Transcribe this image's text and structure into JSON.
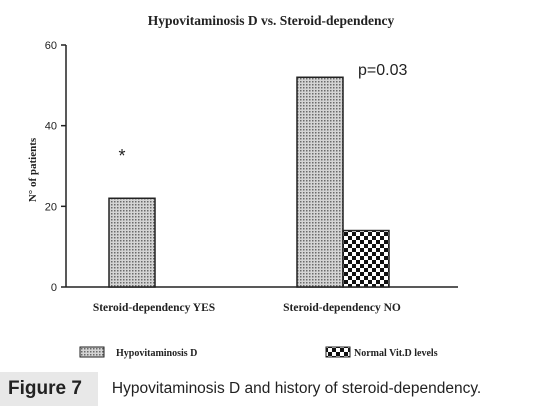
{
  "chart_data": {
    "type": "bar",
    "title": "Hypovitaminosis D vs. Steroid-dependency",
    "xlabel": "",
    "ylabel": "N° of patients",
    "categories": [
      "Steroid-dependency YES",
      "Steroid-dependency NO"
    ],
    "series": [
      {
        "name": "Hypovitaminosis D",
        "values": [
          22,
          52
        ]
      },
      {
        "name": "Normal Vit.D levels",
        "values": [
          0,
          14
        ]
      }
    ],
    "ylim": [
      0,
      60
    ],
    "yticks": [
      "0",
      "20",
      "40",
      "60"
    ],
    "annotations": {
      "pvalue": "p=0.03",
      "star": "*"
    },
    "legend_position": "bottom",
    "grid": false
  },
  "caption": {
    "label": "Figure 7",
    "text": "Hypovitaminosis D and history of steroid-dependency."
  }
}
